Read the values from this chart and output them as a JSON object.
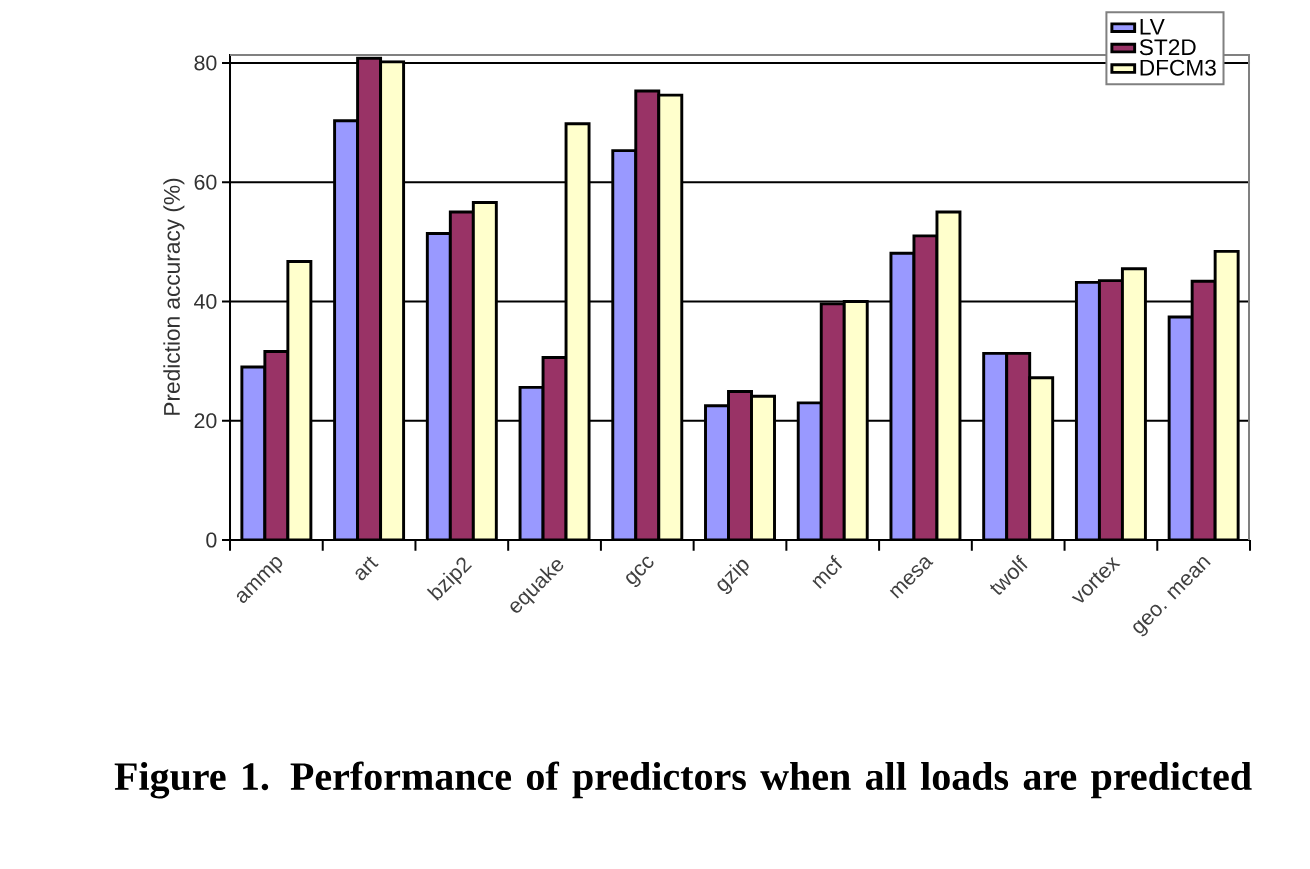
{
  "chart_data": {
    "type": "bar",
    "title": "Figure 1. Performance of predictors when all loads are predicted",
    "ylabel": "Prediction accuracy (%)",
    "categories": [
      "ammp",
      "art",
      "bzip2",
      "equake",
      "gcc",
      "gzip",
      "mcf",
      "mesa",
      "twolf",
      "vortex",
      "geo. mean"
    ],
    "series": [
      {
        "name": "LV",
        "color": "#9999ff",
        "values": [
          29,
          70.3,
          51.4,
          25.6,
          65.3,
          22.5,
          23,
          48.1,
          31.3,
          43.2,
          37.4
        ]
      },
      {
        "name": "ST2D",
        "color": "#993366",
        "values": [
          31.6,
          80.8,
          55,
          30.6,
          75.3,
          24.9,
          39.6,
          51,
          31.3,
          43.5,
          43.4
        ]
      },
      {
        "name": "DFCM3",
        "color": "#ffffcc",
        "values": [
          46.7,
          80.2,
          56.6,
          69.8,
          74.6,
          24.1,
          40,
          55,
          27.2,
          45.5,
          48.4
        ]
      }
    ],
    "ylim": [
      0,
      81.5
    ],
    "yticks": [
      0,
      20,
      40,
      60,
      80
    ],
    "grid": "y",
    "legend": "top right"
  }
}
